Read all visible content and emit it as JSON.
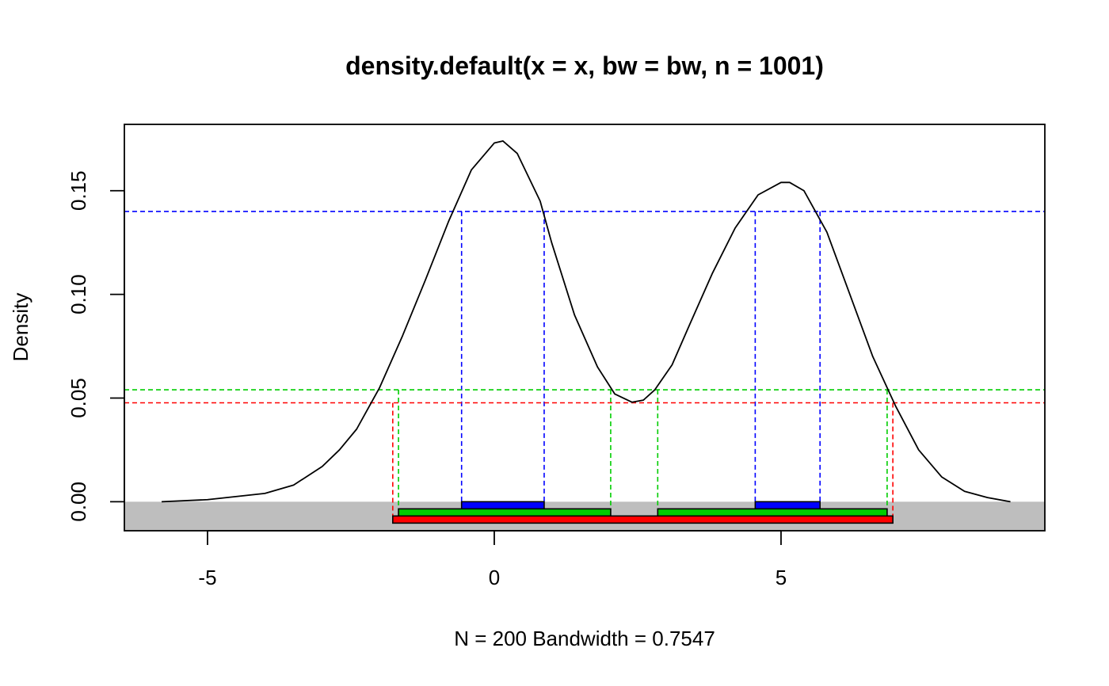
{
  "chart_data": {
    "type": "line",
    "title": "density.default(x = x, bw = bw, n = 1001)",
    "xlabel": "N = 200   Bandwidth = 0.7547",
    "ylabel": "Density",
    "xlim": [
      -6.45,
      9.6
    ],
    "ylim": [
      -0.014,
      0.182
    ],
    "x_ticks": [
      "-5",
      "0",
      "5"
    ],
    "y_ticks": [
      "0.00",
      "0.05",
      "0.10",
      "0.15"
    ],
    "grid": false,
    "series": [
      {
        "x": [
          -5.8,
          -5.0,
          -4.0,
          -3.5,
          -3.0,
          -2.7,
          -2.4,
          -2.0,
          -1.6,
          -1.2,
          -0.8,
          -0.4,
          0.0,
          0.15,
          0.4,
          0.8,
          1.0,
          1.4,
          1.8,
          2.1,
          2.4,
          2.6,
          2.8,
          3.1,
          3.4,
          3.8,
          4.2,
          4.6,
          5.0,
          5.15,
          5.4,
          5.8,
          6.2,
          6.6,
          7.0,
          7.4,
          7.8,
          8.2,
          8.6,
          9.0
        ],
        "values": [
          0.0,
          0.001,
          0.004,
          0.008,
          0.017,
          0.025,
          0.035,
          0.055,
          0.08,
          0.107,
          0.135,
          0.16,
          0.173,
          0.174,
          0.168,
          0.145,
          0.125,
          0.09,
          0.065,
          0.052,
          0.048,
          0.049,
          0.054,
          0.066,
          0.085,
          0.11,
          0.132,
          0.148,
          0.154,
          0.154,
          0.15,
          0.13,
          0.1,
          0.07,
          0.046,
          0.025,
          0.012,
          0.005,
          0.002,
          0.0
        ]
      }
    ],
    "hdr_levels": [
      {
        "color": "#0000ff",
        "density": 0.14,
        "intervals": [
          [
            -0.57,
            0.87
          ],
          [
            4.55,
            5.68
          ]
        ]
      },
      {
        "color": "#00cd00",
        "density": 0.054,
        "intervals": [
          [
            -1.67,
            2.03
          ],
          [
            2.85,
            6.85
          ]
        ]
      },
      {
        "color": "#ff0000",
        "density": 0.0477,
        "intervals": [
          [
            -1.77,
            6.95
          ]
        ]
      }
    ],
    "band_color": "#bebebe"
  }
}
